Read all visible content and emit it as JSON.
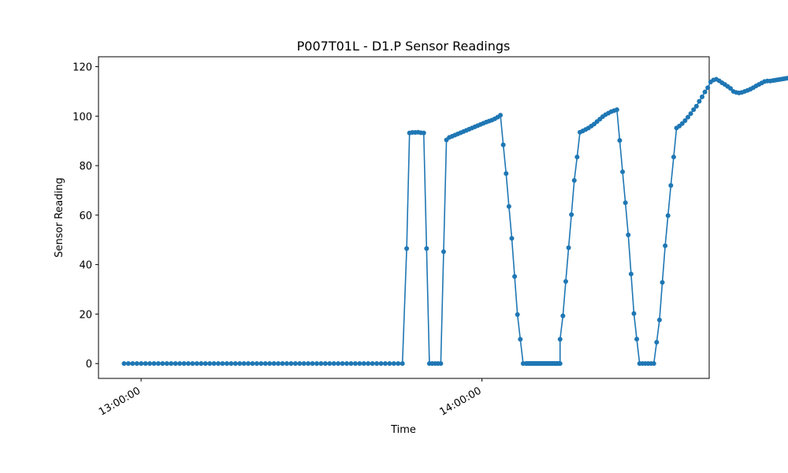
{
  "chart_data": {
    "type": "line",
    "title": "P007T01L - D1.P Sensor Readings",
    "xlabel": "Time",
    "ylabel": "Sensor Reading",
    "x_tick_labels": [
      "13:00:00",
      "14:00:00"
    ],
    "x_tick_times": [
      "13:00:00",
      "14:00:00"
    ],
    "y_ticks": [
      0,
      20,
      40,
      60,
      80,
      100,
      120
    ],
    "xlim": [
      "12:52:30",
      "14:40:00"
    ],
    "ylim": [
      -6,
      124
    ],
    "grid": false,
    "legend": "none",
    "series_color": "#1f77b4",
    "series": [
      {
        "segments": [
          {
            "start": "12:57:00",
            "end": "13:46:00",
            "n": 66,
            "from": 0,
            "to": 0
          },
          {
            "points": [
              [
                "13:46:45",
                46.5
              ],
              [
                "13:47:15",
                93.2
              ],
              [
                "13:47:45",
                93.4
              ],
              [
                "13:48:15",
                93.4
              ],
              [
                "13:48:45",
                93.5
              ],
              [
                "13:49:15",
                93.3
              ],
              [
                "13:49:45",
                93.2
              ],
              [
                "13:50:15",
                46.5
              ],
              [
                "13:50:45",
                0
              ],
              [
                "13:51:15",
                0
              ],
              [
                "13:51:45",
                0
              ],
              [
                "13:52:15",
                0
              ],
              [
                "13:52:45",
                0
              ],
              [
                "13:53:15",
                45.2
              ],
              [
                "13:53:45",
                90.4
              ]
            ]
          },
          {
            "start": "13:54:15",
            "end": "14:00:45",
            "n": 14,
            "from": 91.4,
            "to": 97.6
          },
          {
            "points": [
              [
                "14:01:15",
                98.0
              ],
              [
                "14:01:45",
                98.4
              ],
              [
                "14:02:15",
                98.9
              ],
              [
                "14:02:45",
                99.6
              ],
              [
                "14:03:15",
                100.4
              ],
              [
                "14:03:45",
                88.4
              ],
              [
                "14:04:15",
                76.8
              ],
              [
                "14:04:45",
                63.5
              ],
              [
                "14:05:15",
                50.6
              ],
              [
                "14:05:45",
                35.2
              ],
              [
                "14:06:15",
                19.8
              ],
              [
                "14:06:45",
                9.8
              ],
              [
                "14:07:15",
                0
              ]
            ]
          },
          {
            "start": "14:07:45",
            "end": "14:13:45",
            "n": 40,
            "from": 0,
            "to": 0
          },
          {
            "points": [
              [
                "14:13:45",
                9.8
              ],
              [
                "14:14:15",
                19.3
              ],
              [
                "14:14:45",
                33.2
              ],
              [
                "14:15:15",
                46.8
              ],
              [
                "14:15:45",
                60.2
              ],
              [
                "14:16:15",
                74.0
              ],
              [
                "14:16:45",
                83.5
              ],
              [
                "14:17:15",
                93.5
              ],
              [
                "14:17:45",
                94.0
              ],
              [
                "14:18:15",
                94.6
              ],
              [
                "14:18:45",
                95.2
              ],
              [
                "14:19:15",
                96.0
              ],
              [
                "14:19:45",
                96.8
              ],
              [
                "14:20:15",
                97.8
              ],
              [
                "14:20:45",
                98.8
              ],
              [
                "14:21:15",
                99.8
              ],
              [
                "14:21:45",
                100.6
              ],
              [
                "14:22:15",
                101.2
              ],
              [
                "14:22:45",
                101.8
              ],
              [
                "14:23:15",
                102.2
              ],
              [
                "14:23:45",
                102.6
              ],
              [
                "14:24:15",
                90.2
              ],
              [
                "14:24:45",
                77.5
              ],
              [
                "14:25:15",
                65.0
              ],
              [
                "14:25:45",
                52.0
              ],
              [
                "14:26:15",
                36.2
              ],
              [
                "14:26:45",
                20.2
              ],
              [
                "14:27:15",
                9.9
              ],
              [
                "14:27:45",
                0
              ],
              [
                "14:28:15",
                0
              ],
              [
                "14:28:45",
                0
              ],
              [
                "14:29:15",
                0
              ],
              [
                "14:29:45",
                0
              ],
              [
                "14:30:15",
                0
              ],
              [
                "14:30:45",
                8.6
              ],
              [
                "14:31:15",
                17.6
              ],
              [
                "14:31:45",
                32.8
              ],
              [
                "14:32:15",
                47.6
              ],
              [
                "14:32:45",
                59.8
              ],
              [
                "14:33:15",
                72.0
              ],
              [
                "14:33:45",
                83.5
              ],
              [
                "14:34:15",
                95.2
              ],
              [
                "14:34:45",
                96.0
              ],
              [
                "14:35:15",
                97.0
              ],
              [
                "14:35:45",
                98.2
              ],
              [
                "14:36:15",
                99.6
              ],
              [
                "14:36:45",
                101.0
              ],
              [
                "14:37:15",
                102.6
              ],
              [
                "14:37:45",
                104.0
              ],
              [
                "14:38:15",
                106.0
              ],
              [
                "14:38:45",
                107.8
              ],
              [
                "14:39:15",
                109.8
              ],
              [
                "14:39:45",
                111.5
              ],
              [
                "14:40:15",
                113.8
              ],
              [
                "14:40:45",
                114.6
              ],
              [
                "14:41:15",
                114.9
              ],
              [
                "14:41:45",
                114.3
              ],
              [
                "14:42:15",
                113.5
              ],
              [
                "14:42:45",
                112.8
              ],
              [
                "14:43:15",
                112.0
              ],
              [
                "14:43:45",
                111.2
              ],
              [
                "14:44:15",
                110.0
              ],
              [
                "14:44:45",
                109.6
              ],
              [
                "14:45:15",
                109.4
              ],
              [
                "14:45:45",
                109.6
              ],
              [
                "14:46:15",
                110.0
              ],
              [
                "14:46:45",
                110.4
              ],
              [
                "14:47:15",
                110.9
              ],
              [
                "14:47:45",
                111.5
              ],
              [
                "14:48:15",
                112.2
              ],
              [
                "14:48:45",
                112.8
              ],
              [
                "14:49:15",
                113.4
              ],
              [
                "14:49:45",
                114.0
              ],
              [
                "14:50:15",
                114.2
              ],
              [
                "14:50:45",
                114.2
              ]
            ]
          },
          {
            "start": "14:51:15",
            "end": "15:02:00",
            "n": 30,
            "from": 114.4,
            "to": 118.4
          }
        ]
      }
    ]
  }
}
